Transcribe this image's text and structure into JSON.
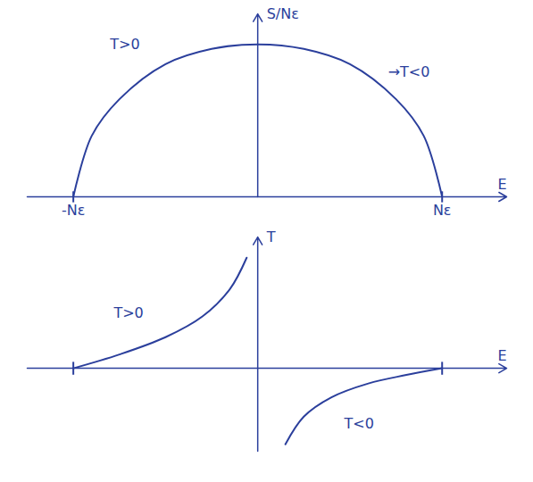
{
  "chart_data": [
    {
      "type": "line",
      "color": "#2b3f9c",
      "y_label": "S/Nε",
      "x_label": "E",
      "x": [
        -1,
        -0.9,
        -0.75,
        -0.5,
        -0.25,
        0,
        0.25,
        0.5,
        0.75,
        0.9,
        1
      ],
      "values": [
        0,
        0.4,
        0.64,
        0.87,
        0.97,
        1,
        0.97,
        0.87,
        0.64,
        0.4,
        0
      ],
      "xlim": [
        -1.25,
        1.35
      ],
      "ylim": [
        0,
        1.2
      ],
      "xticks": [
        {
          "value": -1,
          "label": "-Nε"
        },
        {
          "value": 1,
          "label": "Nε"
        }
      ],
      "tick_labels": "x",
      "annotations": [
        {
          "text": "T>0",
          "x": -0.72,
          "y": 1.0
        },
        {
          "text": "→T<0",
          "x": 0.82,
          "y": 0.82
        }
      ]
    },
    {
      "type": "line",
      "color": "#2b3f9c",
      "y_label": "T",
      "x_label": "E",
      "x": [
        -1,
        -0.75,
        -0.5,
        -0.3,
        -0.15,
        -0.06,
        0,
        0.15,
        0.25,
        0.4,
        0.6,
        0.8,
        1
      ],
      "values": [
        0,
        0.2,
        0.45,
        0.75,
        1.15,
        1.6,
        null,
        -1.1,
        -0.7,
        -0.42,
        -0.22,
        -0.1,
        0
      ],
      "xlim": [
        -1.25,
        1.35
      ],
      "ylim": [
        -1.2,
        1.9
      ],
      "xticks": [
        -1,
        1
      ],
      "tick_labels": false,
      "annotations": [
        {
          "text": "T>0",
          "x": -0.7,
          "y": 0.8
        },
        {
          "text": "T<0",
          "x": 0.55,
          "y": -0.8
        }
      ]
    }
  ]
}
